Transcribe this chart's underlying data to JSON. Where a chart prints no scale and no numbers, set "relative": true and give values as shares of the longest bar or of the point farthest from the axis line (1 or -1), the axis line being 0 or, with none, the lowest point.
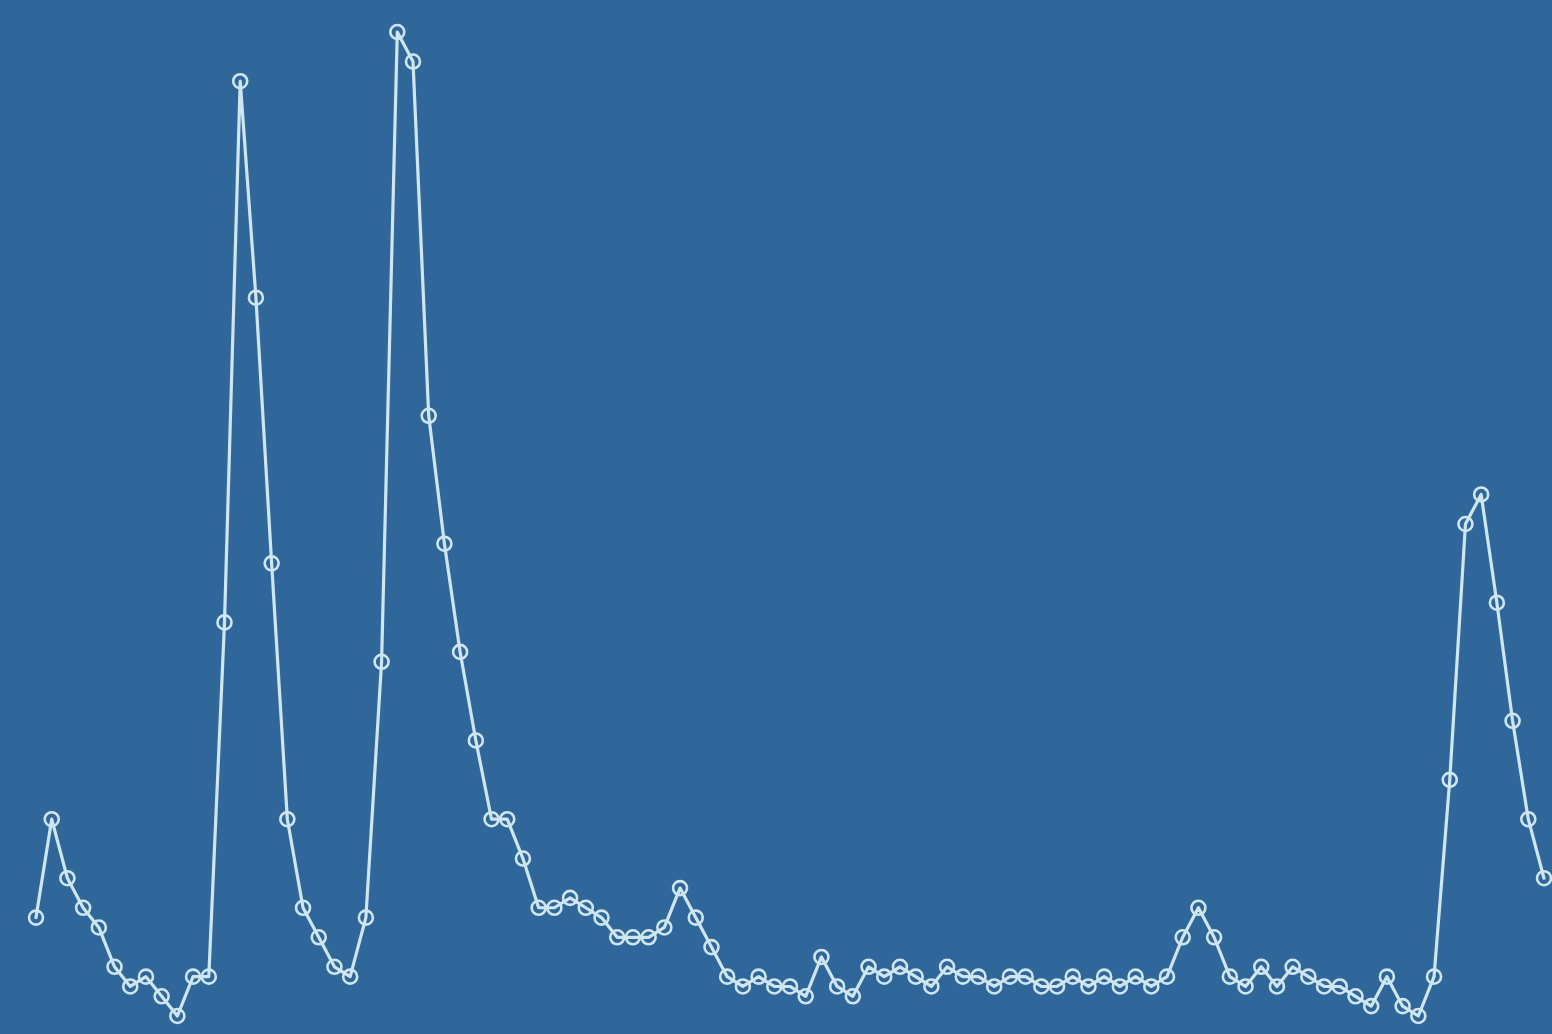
{
  "chart_data": {
    "type": "line",
    "relative": true,
    "marker": "circle",
    "categories": [
      null,
      null,
      null,
      null,
      null,
      null,
      null,
      null,
      null,
      null,
      null,
      null,
      null,
      null,
      null,
      null,
      null,
      null,
      null,
      null,
      null,
      null,
      null,
      null,
      null,
      null,
      null,
      null,
      null,
      null,
      null,
      null,
      null,
      null,
      null,
      null,
      null,
      null,
      null,
      null,
      null,
      null,
      null,
      null,
      null,
      null,
      null,
      null,
      null,
      null,
      null,
      null,
      null,
      null,
      null,
      null,
      null,
      null,
      null,
      null,
      null,
      null,
      null,
      null,
      null,
      null,
      null,
      null,
      null,
      null,
      null,
      null,
      null,
      null,
      null,
      null,
      null,
      null,
      null,
      null,
      null,
      null,
      null,
      null,
      null,
      null,
      null,
      null,
      null,
      null,
      null,
      null,
      null,
      null,
      null,
      null,
      null
    ],
    "series": [
      {
        "color": "#cfe6f0",
        "values": [
          0.1,
          0.2,
          0.14,
          0.11,
          0.09,
          0.05,
          0.03,
          0.04,
          0.02,
          0.0,
          0.04,
          0.04,
          0.4,
          0.95,
          0.73,
          0.46,
          0.2,
          0.11,
          0.08,
          0.05,
          0.04,
          0.1,
          0.36,
          1.0,
          0.97,
          0.61,
          0.48,
          0.37,
          0.28,
          0.2,
          0.2,
          0.16,
          0.11,
          0.11,
          0.12,
          0.11,
          0.1,
          0.08,
          0.08,
          0.08,
          0.09,
          0.13,
          0.1,
          0.07,
          0.04,
          0.03,
          0.04,
          0.03,
          0.03,
          0.02,
          0.06,
          0.03,
          0.02,
          0.05,
          0.04,
          0.05,
          0.04,
          0.03,
          0.05,
          0.04,
          0.04,
          0.03,
          0.04,
          0.04,
          0.03,
          0.03,
          0.04,
          0.03,
          0.04,
          0.03,
          0.04,
          0.03,
          0.04,
          0.08,
          0.11,
          0.08,
          0.04,
          0.03,
          0.05,
          0.03,
          0.05,
          0.04,
          0.03,
          0.03,
          0.02,
          0.01,
          0.04,
          0.01,
          0.0,
          0.04,
          0.24,
          0.5,
          0.53,
          0.42,
          0.3,
          0.2,
          0.14
        ]
      }
    ]
  }
}
